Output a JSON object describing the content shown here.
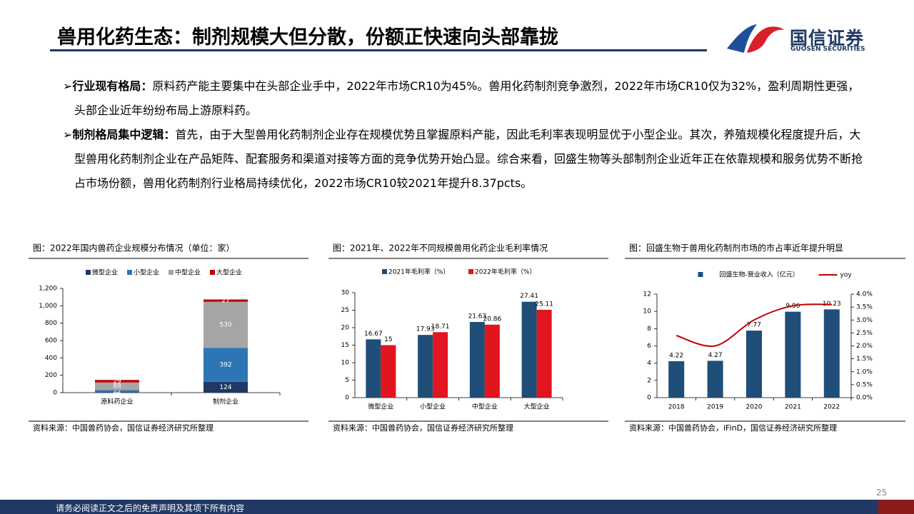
{
  "header": {
    "title": "兽用化药生态：制剂规模大但分散，份额正快速向头部靠拢",
    "logo_cn": "国信证券",
    "logo_en": "GUOSEN SECURITIES"
  },
  "bullets": [
    {
      "lead": "行业现有格局：",
      "text": "原料药产能主要集中在头部企业手中，2022年市场CR10为45%。兽用化药制剂竞争激烈，2022年市场CR10仅为32%，盈利周期性更强，头部企业近年纷纷布局上游原料药。"
    },
    {
      "lead": "制剂格局集中逻辑：",
      "text": "首先，由于大型兽用化药制剂企业存在规模优势且掌握原料产能，因此毛利率表现明显优于小型企业。其次，养殖规模化程度提升后，大型兽用化药制剂企业在产品矩阵、配套服务和渠道对接等方面的竞争优势开始凸显。综合来看，回盛生物等头部制剂企业近年正在依靠规模和服务优势不断抢占市场份额，兽用化药制剂行业格局持续优化，2022市场CR10较2021年提升8.37pcts。"
    }
  ],
  "chart_data": [
    {
      "type": "stacked_bar",
      "title": "图：2022年国内兽药企业规模分布情况（单位：家）",
      "source": "资料来源：中国兽药协会，国信证券经济研究所整理",
      "categories": [
        "原料药企业",
        "制剂企业"
      ],
      "series": [
        {
          "name": "微型企业",
          "color": "#1f3864",
          "values": [
            7,
            124
          ]
        },
        {
          "name": "小型企业",
          "color": "#2e75b6",
          "values": [
            22,
            392
          ]
        },
        {
          "name": "中型企业",
          "color": "#a5a5a5",
          "values": [
            88,
            530
          ]
        },
        {
          "name": "大型企业",
          "color": "#c00000",
          "values": [
            29,
            27
          ]
        }
      ],
      "ylim": [
        0,
        1200
      ],
      "yticks": [
        0,
        200,
        400,
        600,
        800,
        {
          "value": 1000,
          "label": "1,000"
        },
        {
          "value": 1200,
          "label": "1,200"
        }
      ]
    },
    {
      "type": "bar",
      "title": "图：2021年、2022年不同规模兽用化药企业毛利率情况",
      "source": "资料来源：中国兽药协会，国信证券经济研究所整理",
      "categories": [
        "微型企业",
        "小型企业",
        "中型企业",
        "大型企业"
      ],
      "series": [
        {
          "name": "2021年毛利率（%）",
          "color": "#1f4e79",
          "values": [
            16.67,
            17.93,
            21.63,
            27.41
          ]
        },
        {
          "name": "2022年毛利率（%）",
          "color": "#e0151e",
          "values": [
            15,
            18.71,
            20.86,
            25.11
          ]
        }
      ],
      "ylim": [
        0,
        30
      ],
      "yticks": [
        0,
        5,
        10,
        15,
        20,
        25,
        30
      ]
    },
    {
      "type": "bar_line",
      "title": "图：回盛生物于兽用化药制剂市场的市占率近年提升明显",
      "source": "资料来源：中国兽药协会，iFinD，国信证券经济研究所整理",
      "categories": [
        "2018",
        "2019",
        "2020",
        "2021",
        "2022"
      ],
      "series": [
        {
          "name": "回盛生物-营业收入（亿元）",
          "color": "#1f4e79",
          "values": [
            4.22,
            4.27,
            7.77,
            9.96,
            10.23
          ]
        },
        {
          "name": "yoy",
          "color": "#c00000",
          "axis": "y2",
          "values": [
            2.4,
            2.0,
            3.0,
            3.55,
            3.6
          ]
        }
      ],
      "ylim": [
        0,
        12
      ],
      "yticks": [
        0,
        2,
        4,
        6,
        8,
        10,
        12
      ],
      "y2lim": [
        0,
        4
      ],
      "y2ticks": [
        {
          "value": 0,
          "label": "0.0%"
        },
        {
          "value": 0.5,
          "label": "0.5%"
        },
        {
          "value": 1,
          "label": "1.0%"
        },
        {
          "value": 1.5,
          "label": "1.5%"
        },
        {
          "value": 2,
          "label": "2.0%"
        },
        {
          "value": 2.5,
          "label": "2.5%"
        },
        {
          "value": 3,
          "label": "3.0%"
        },
        {
          "value": 3.5,
          "label": "3.5%"
        },
        {
          "value": 4,
          "label": "4.0%"
        }
      ]
    }
  ],
  "footer": {
    "disclaimer": "请务必阅读正文之后的免责声明及其项下所有内容",
    "page": "25"
  }
}
